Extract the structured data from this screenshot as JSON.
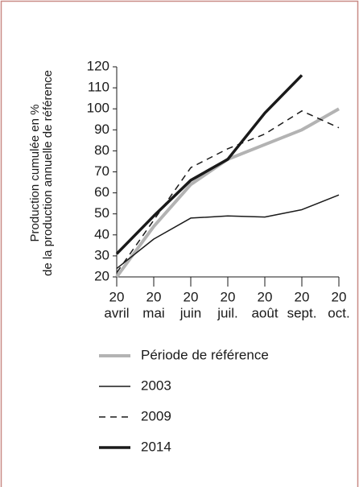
{
  "chart_data": {
    "type": "line",
    "ylabel": [
      "Production cumulée en %",
      "de la production annuelle de référence"
    ],
    "categories": [
      [
        "20",
        "avril"
      ],
      [
        "20",
        "mai"
      ],
      [
        "20",
        "juin"
      ],
      [
        "20",
        "juil."
      ],
      [
        "20",
        "août"
      ],
      [
        "20",
        "sept."
      ],
      [
        "20",
        "oct."
      ]
    ],
    "ylim": [
      20,
      120
    ],
    "yticks": [
      20,
      30,
      40,
      50,
      60,
      70,
      80,
      90,
      100,
      110,
      120
    ],
    "legend": "bottom",
    "series": [
      {
        "name": "Période de référence",
        "color": "#b3b3b3",
        "linewidth": 4,
        "style": "solid",
        "values": [
          20,
          44,
          64,
          76,
          83,
          90,
          100
        ]
      },
      {
        "name": "2003",
        "color": "#1a1a1a",
        "linewidth": 1.5,
        "style": "solid",
        "values": [
          24,
          38,
          48,
          49,
          48.5,
          52,
          59
        ]
      },
      {
        "name": "2009",
        "color": "#1a1a1a",
        "linewidth": 1.5,
        "style": "dashed",
        "values": [
          22,
          47,
          72,
          81,
          88,
          99,
          91
        ]
      },
      {
        "name": "2014",
        "color": "#1a1a1a",
        "linewidth": 3.5,
        "style": "solid",
        "values": [
          31,
          49,
          66,
          76,
          98,
          116,
          null
        ]
      }
    ]
  }
}
